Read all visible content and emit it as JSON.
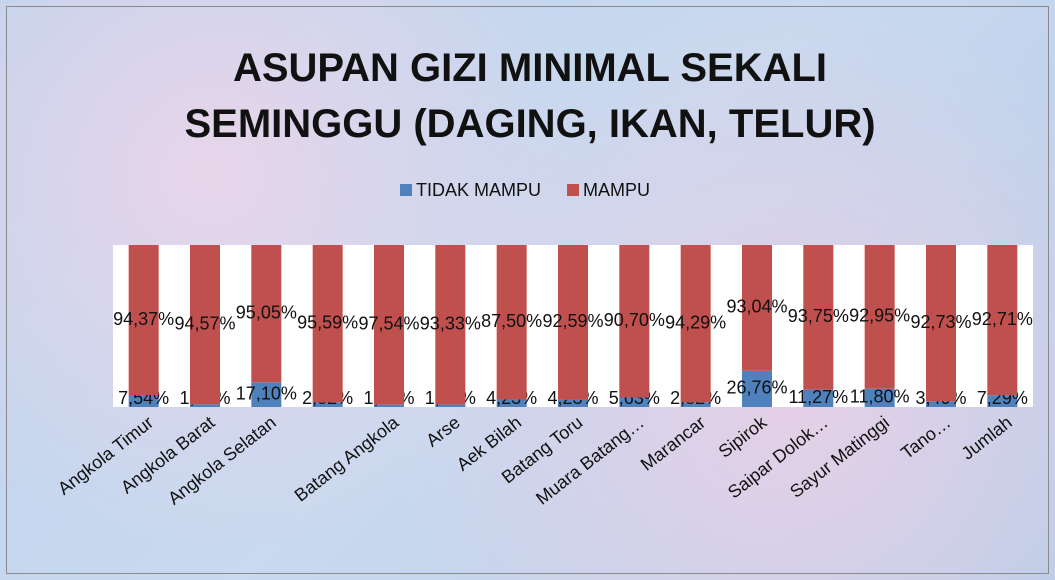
{
  "chart_data": {
    "type": "bar",
    "stacking": "percent",
    "title": "ASUPAN GIZI MINIMAL SEKALI SEMINGGU (DAGING, IKAN, TELUR)",
    "categories": [
      "Angkola Timur",
      "Angkola Barat",
      "Angkola Selatan",
      null,
      "Batang Angkola",
      "Arse",
      "Aek Bilah",
      "Batang Toru",
      "Muara Batang…",
      "Marancar",
      "Sipirok",
      "Saipar Dolok…",
      "Sayur Matinggi",
      "Tano…",
      "Jumlah"
    ],
    "series": [
      {
        "name": "TIDAK MAMPU",
        "color": "#4f81bd",
        "values": [
          7.54,
          1.59,
          17.1,
          2.82,
          1.41,
          1.41,
          4.23,
          4.23,
          5.63,
          2.82,
          26.76,
          11.27,
          11.8,
          3.4,
          7.29
        ],
        "value_labels": [
          "7,54%",
          "1,59%",
          "17,10%",
          "2,82%",
          "1,41%",
          "1,41%",
          "4,23%",
          "4,23%",
          "5,63%",
          "2,82%",
          "26,76%",
          "11,27%",
          "11,80%",
          "3,40%",
          "7,29%"
        ]
      },
      {
        "name": "MAMPU",
        "color": "#c0504d",
        "values": [
          94.37,
          94.57,
          95.05,
          95.59,
          97.54,
          93.33,
          87.5,
          92.59,
          90.7,
          94.29,
          93.04,
          93.75,
          92.95,
          92.73,
          92.71
        ],
        "value_labels": [
          "94,37%",
          "94,57%",
          "95,05%",
          "95,59%",
          "97,54%",
          "93,33%",
          "87,50%",
          "92,59%",
          "90,70%",
          "94,29%",
          "93,04%",
          "93,75%",
          "92,95%",
          "92,73%",
          "92,71%"
        ]
      }
    ],
    "legend": "top"
  }
}
